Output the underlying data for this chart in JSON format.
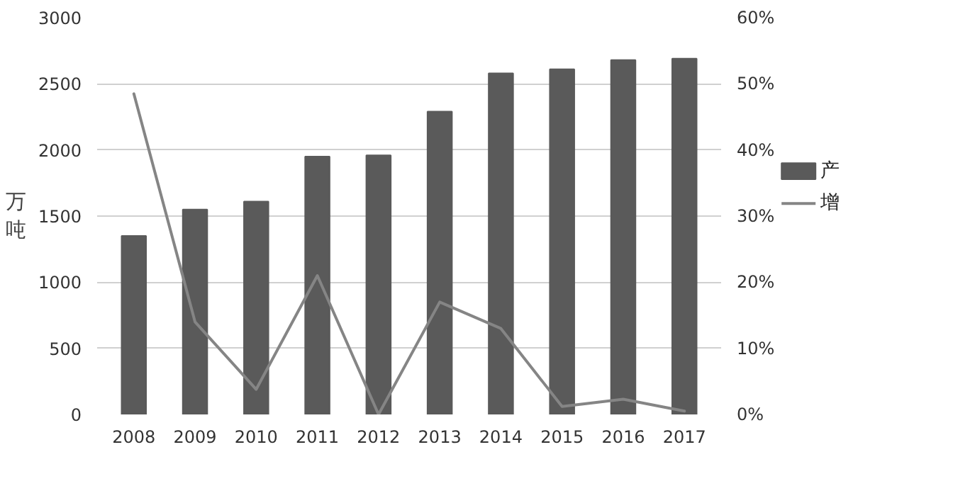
{
  "chart_data": {
    "type": "bar",
    "ylabel": "万吨",
    "categories": [
      "2008",
      "2009",
      "2010",
      "2011",
      "2012",
      "2013",
      "2014",
      "2015",
      "2016",
      "2017"
    ],
    "series": [
      {
        "name": "产",
        "color": "#5a5a5a",
        "values": [
          1350,
          1550,
          1610,
          1950,
          1960,
          2290,
          2580,
          2610,
          2680,
          2690
        ]
      },
      {
        "name": "增",
        "type": "line",
        "axis": "y2",
        "color": "#858585",
        "values": [
          48.5,
          14,
          3.8,
          21,
          0,
          17,
          13,
          1.2,
          2.3,
          0.5
        ]
      }
    ],
    "ylim": [
      0,
      3000
    ],
    "yticks": [
      0,
      500,
      1000,
      1500,
      2000,
      2500,
      3000
    ],
    "y2lim": [
      0,
      60
    ],
    "y2ticks": [
      {
        "value": 0,
        "label": "0%"
      },
      {
        "value": 10,
        "label": "10%"
      },
      {
        "value": 20,
        "label": "20%"
      },
      {
        "value": 30,
        "label": "30%"
      },
      {
        "value": 40,
        "label": "40%"
      },
      {
        "value": 50,
        "label": "50%"
      },
      {
        "value": 60,
        "label": "60%"
      }
    ],
    "grid": "y",
    "legend": "right"
  }
}
